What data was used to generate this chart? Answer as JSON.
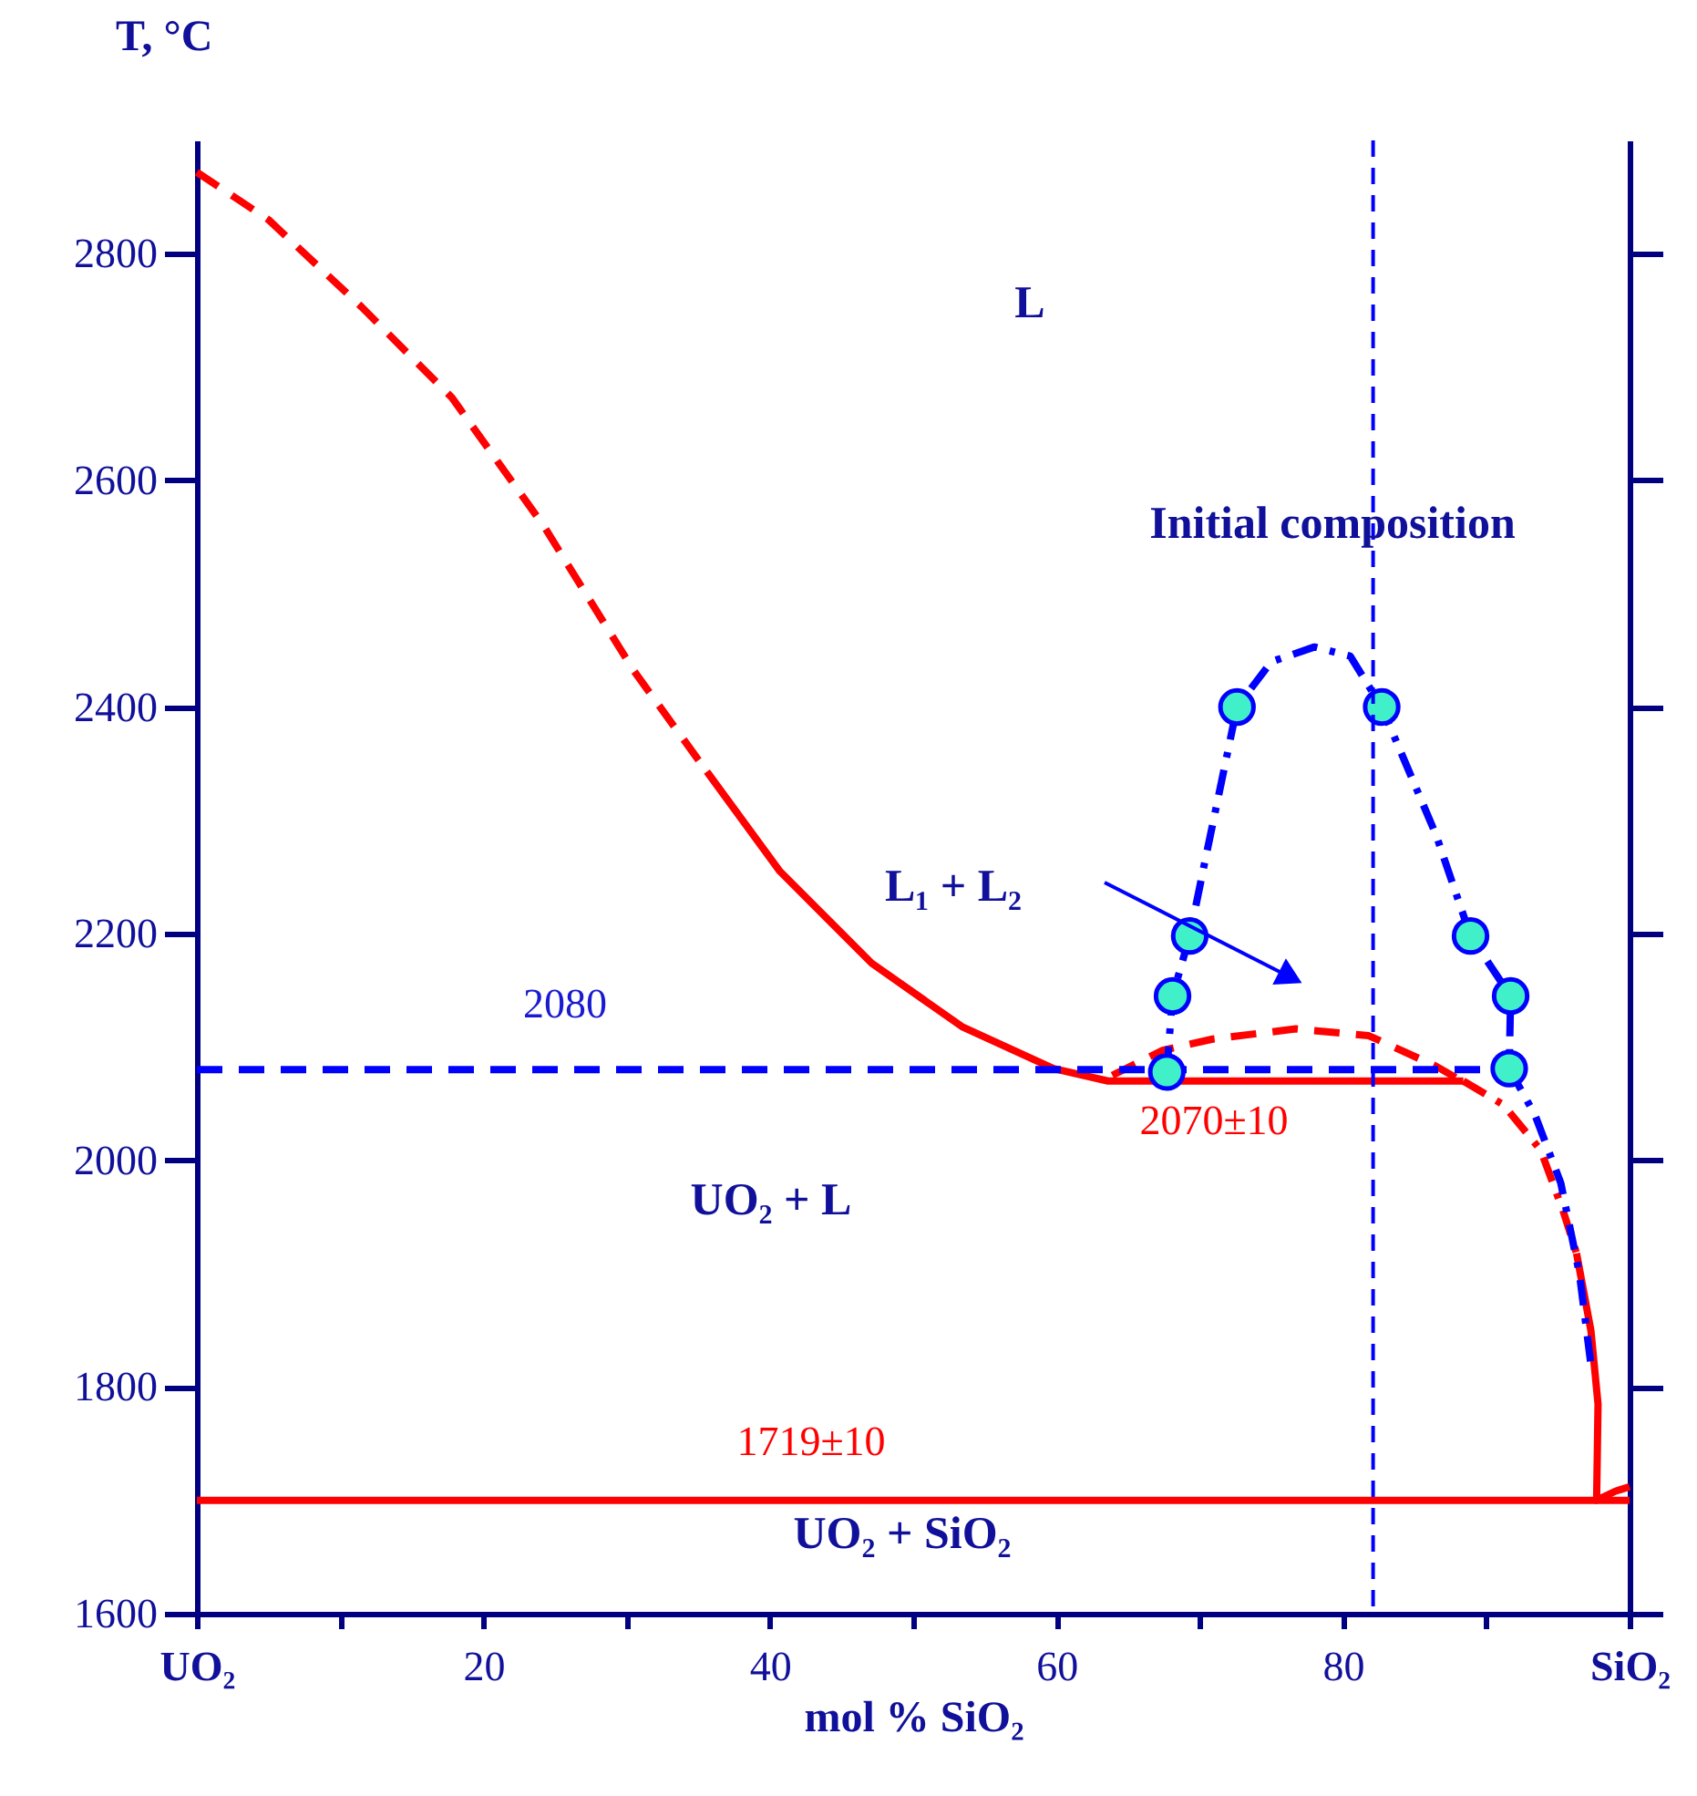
{
  "chart_data": {
    "type": "line",
    "xlabel": "mol % SiO₂",
    "ylabel": "T, °C",
    "xlim": [
      0,
      100
    ],
    "xticks": [
      {
        "value": 0,
        "label": "UO₂"
      },
      {
        "value": 10,
        "label": null
      },
      20,
      {
        "value": 30,
        "label": null
      },
      40,
      {
        "value": 50,
        "label": null
      },
      60,
      {
        "value": 70,
        "label": null
      },
      80,
      {
        "value": 90,
        "label": null
      },
      {
        "value": 100,
        "label": "SiO₂"
      }
    ],
    "ylim": [
      1600,
      2900
    ],
    "yticks": [
      1600,
      1800,
      2000,
      2200,
      2400,
      2600,
      2800
    ],
    "grid": false,
    "marker": "none",
    "series": [
      {
        "type": "line",
        "color": "#ff0000",
        "line_style": "dashed",
        "x": [
          0,
          5,
          11.5,
          17.8,
          24.2,
          30.5,
          35.6
        ],
        "values": [
          2872,
          2830,
          2753,
          2673,
          2560,
          2432,
          2343
        ]
      },
      {
        "type": "line",
        "color": "#ff0000",
        "line_style": "solid",
        "x": [
          35.6,
          40.7,
          47.1,
          53.4,
          59.8,
          63.6,
          88.4
        ],
        "values": [
          2343,
          2255,
          2174,
          2118,
          2081,
          2070,
          2070
        ]
      },
      {
        "type": "line",
        "color": "#ff0000",
        "line_style": "dashdot",
        "x": [
          88.4,
          91.2,
          93.8,
          95.4,
          96.3
        ],
        "values": [
          2070,
          2049,
          2009,
          1954,
          1918
        ]
      },
      {
        "type": "line",
        "color": "#ff0000",
        "line_style": "solid",
        "x": [
          96.3,
          97.3,
          97.8,
          97.7,
          99,
          100
        ],
        "values": [
          1918,
          1850,
          1785,
          1700,
          1708,
          1712
        ]
      },
      {
        "type": "line",
        "color": "#ff0000",
        "line_style": "solid",
        "x": [
          0,
          100
        ],
        "values": [
          1700,
          1700
        ]
      },
      {
        "type": "line",
        "color": "#ff0000",
        "line_style": "dashed",
        "x": [
          63.9,
          67.4,
          70.9,
          76.7,
          81.8,
          86.5,
          88.7
        ],
        "values": [
          2075,
          2097,
          2107,
          2116,
          2110,
          2083,
          2067
        ]
      },
      {
        "type": "line",
        "color": "#0000ff",
        "line_style": "dashed",
        "x": [
          0,
          91.2
        ],
        "values": [
          2080,
          2080
        ]
      },
      {
        "type": "line",
        "color": "#0000ff",
        "line_style": "dashdot",
        "x": [
          67.7,
          68.1,
          69.3,
          70.3,
          72.6,
          75,
          78,
          80.5,
          82.7,
          86.5,
          88.9,
          91.7,
          91.6,
          93.4,
          95.2,
          96.5,
          97.3
        ],
        "values": [
          2078,
          2145,
          2198,
          2260,
          2400,
          2440,
          2453,
          2445,
          2400,
          2287,
          2198,
          2145,
          2081,
          2040,
          1980,
          1900,
          1820
        ]
      },
      {
        "type": "scatter",
        "marker": "circle",
        "color": "#40f0c8",
        "x": [
          67.7,
          68.1,
          69.3,
          72.6,
          82.7,
          88.9,
          91.7,
          91.6
        ],
        "values": [
          2078,
          2145,
          2198,
          2400,
          2400,
          2198,
          2145,
          2081
        ]
      }
    ],
    "ref_lines": [
      {
        "axis": "x",
        "value": 82.1,
        "color": "#0000ff",
        "line_style": "dashed"
      }
    ],
    "annotations": [
      "L",
      "Initial composition",
      "L₁ + L₂",
      "2080",
      "2070±10",
      "UO₂ + L",
      "1719±10",
      "UO₂ + SiO₂"
    ]
  }
}
